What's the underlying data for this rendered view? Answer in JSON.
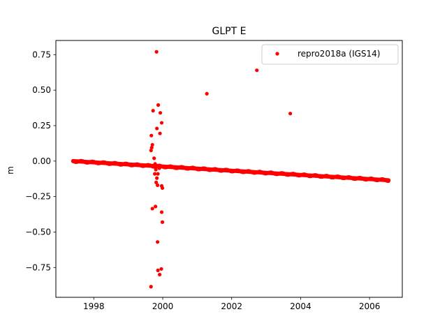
{
  "chart_data": {
    "type": "scatter",
    "title": "GLPT E",
    "xlabel": "",
    "ylabel": "m",
    "xlim": [
      1996.9,
      2006.95
    ],
    "ylim": [
      -0.96,
      0.85
    ],
    "x_ticks": [
      1998,
      2000,
      2002,
      2004,
      2006
    ],
    "y_ticks": [
      -0.75,
      -0.5,
      -0.25,
      0.0,
      0.25,
      0.5,
      0.75
    ],
    "y_tick_labels": [
      "−0.75",
      "−0.50",
      "−0.25",
      "0.00",
      "0.25",
      "0.50",
      "0.75"
    ],
    "grid": false,
    "legend_position": "top-right",
    "series": [
      {
        "name": "repro2018a (IGS14)",
        "color": "#ff0000",
        "marker": "dot",
        "trend": {
          "x_start": 1997.4,
          "x_end": 2006.55,
          "y_start": 0.0,
          "y_end": -0.135
        },
        "outliers": [
          [
            1999.82,
            0.77
          ],
          [
            2002.73,
            0.64
          ],
          [
            2001.28,
            0.475
          ],
          [
            2003.7,
            0.335
          ],
          [
            1999.87,
            0.395
          ],
          [
            1999.72,
            0.355
          ],
          [
            1999.93,
            0.34
          ],
          [
            1999.97,
            0.27
          ],
          [
            1999.83,
            0.23
          ],
          [
            1999.92,
            0.195
          ],
          [
            1999.67,
            0.18
          ],
          [
            1999.7,
            0.115
          ],
          [
            1999.68,
            0.095
          ],
          [
            1999.66,
            0.075
          ],
          [
            1999.75,
            0.02
          ],
          [
            1999.78,
            -0.02
          ],
          [
            1999.8,
            -0.06
          ],
          [
            1999.77,
            -0.09
          ],
          [
            1999.83,
            -0.12
          ],
          [
            1999.81,
            -0.15
          ],
          [
            1999.85,
            -0.17
          ],
          [
            1999.97,
            -0.175
          ],
          [
            1999.99,
            -0.19
          ],
          [
            1999.86,
            -0.09
          ],
          [
            1999.9,
            -0.05
          ],
          [
            1999.79,
            -0.32
          ],
          [
            1999.7,
            -0.335
          ],
          [
            1999.97,
            -0.36
          ],
          [
            1999.99,
            -0.43
          ],
          [
            1999.85,
            -0.57
          ],
          [
            1999.96,
            -0.76
          ],
          [
            1999.86,
            -0.77
          ],
          [
            1999.91,
            -0.8
          ],
          [
            1999.66,
            -0.885
          ]
        ]
      }
    ]
  }
}
